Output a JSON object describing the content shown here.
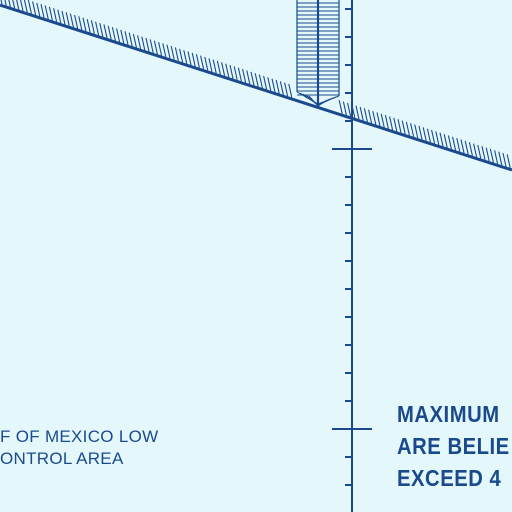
{
  "map": {
    "area_label": {
      "line1": "F OF MEXICO LOW",
      "line2": "ONTROL AREA"
    },
    "notice": {
      "line1": "MAXIMUM",
      "line2": "ARE BELIE",
      "line3": "EXCEED 4"
    },
    "colors": {
      "background": "#e4f8fb",
      "ink": "#1a4a8c"
    },
    "features": {
      "boundary_line": "hatched-boundary",
      "corridor": "hatched-corridor",
      "meridian_scale": "tick-scale"
    }
  }
}
